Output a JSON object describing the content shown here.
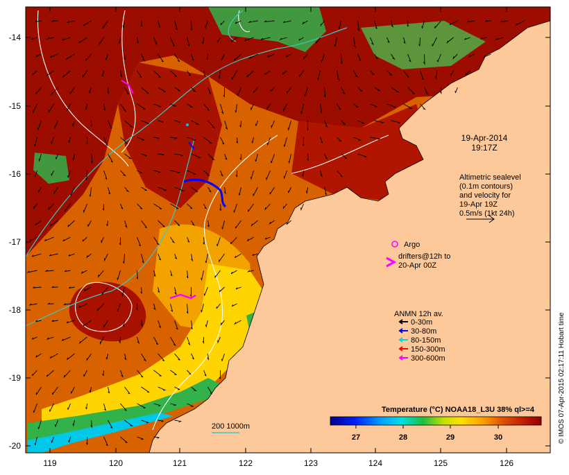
{
  "map": {
    "lat_ticks": [
      "-14",
      "-15",
      "-16",
      "-17",
      "-18",
      "-19",
      "-20"
    ],
    "lon_ticks": [
      "119",
      "120",
      "121",
      "122",
      "123",
      "124",
      "125",
      "126"
    ]
  },
  "timestamp": {
    "date": "19-Apr-2014",
    "time": "19:17Z"
  },
  "altimetry_note": {
    "lines": [
      "Altimetric sealevel",
      "(0.1m contours)",
      "and velocity for",
      "19-Apr 19Z",
      "0.5m/s (1kt 24h)"
    ]
  },
  "legend": {
    "argo": "Argo",
    "drifters": [
      "drifters@12h to",
      "20-Apr 00Z"
    ],
    "anmn_title": "ANMN 12h av.",
    "anmn_items": [
      {
        "label": "0-30m",
        "color": "#000000"
      },
      {
        "label": "30-80m",
        "color": "#0000ff"
      },
      {
        "label": "80-150m",
        "color": "#00d8d8"
      },
      {
        "label": "150-300m",
        "color": "#ff0000"
      },
      {
        "label": "300-600m",
        "color": "#ff00ff"
      }
    ],
    "isobath": "200  1000m"
  },
  "colorbar": {
    "title": "Temperature (°C) NOAA18_L3U 38% ql>=4",
    "ticks": [
      "27",
      "28",
      "29",
      "30"
    ]
  },
  "credit": "© IMOS 07-Apr-2015 02:17:11 Hobart time",
  "colors": {
    "land": "#fdc99b",
    "warm": "#9c0d00",
    "warm2": "#c01a00",
    "mid": "#d86200",
    "mild": "#f3a300",
    "yellow": "#ffe000",
    "green": "#33b24a",
    "cyan": "#00c8e8",
    "contour": "#ffffff",
    "isobath": "#3cc9c4"
  }
}
